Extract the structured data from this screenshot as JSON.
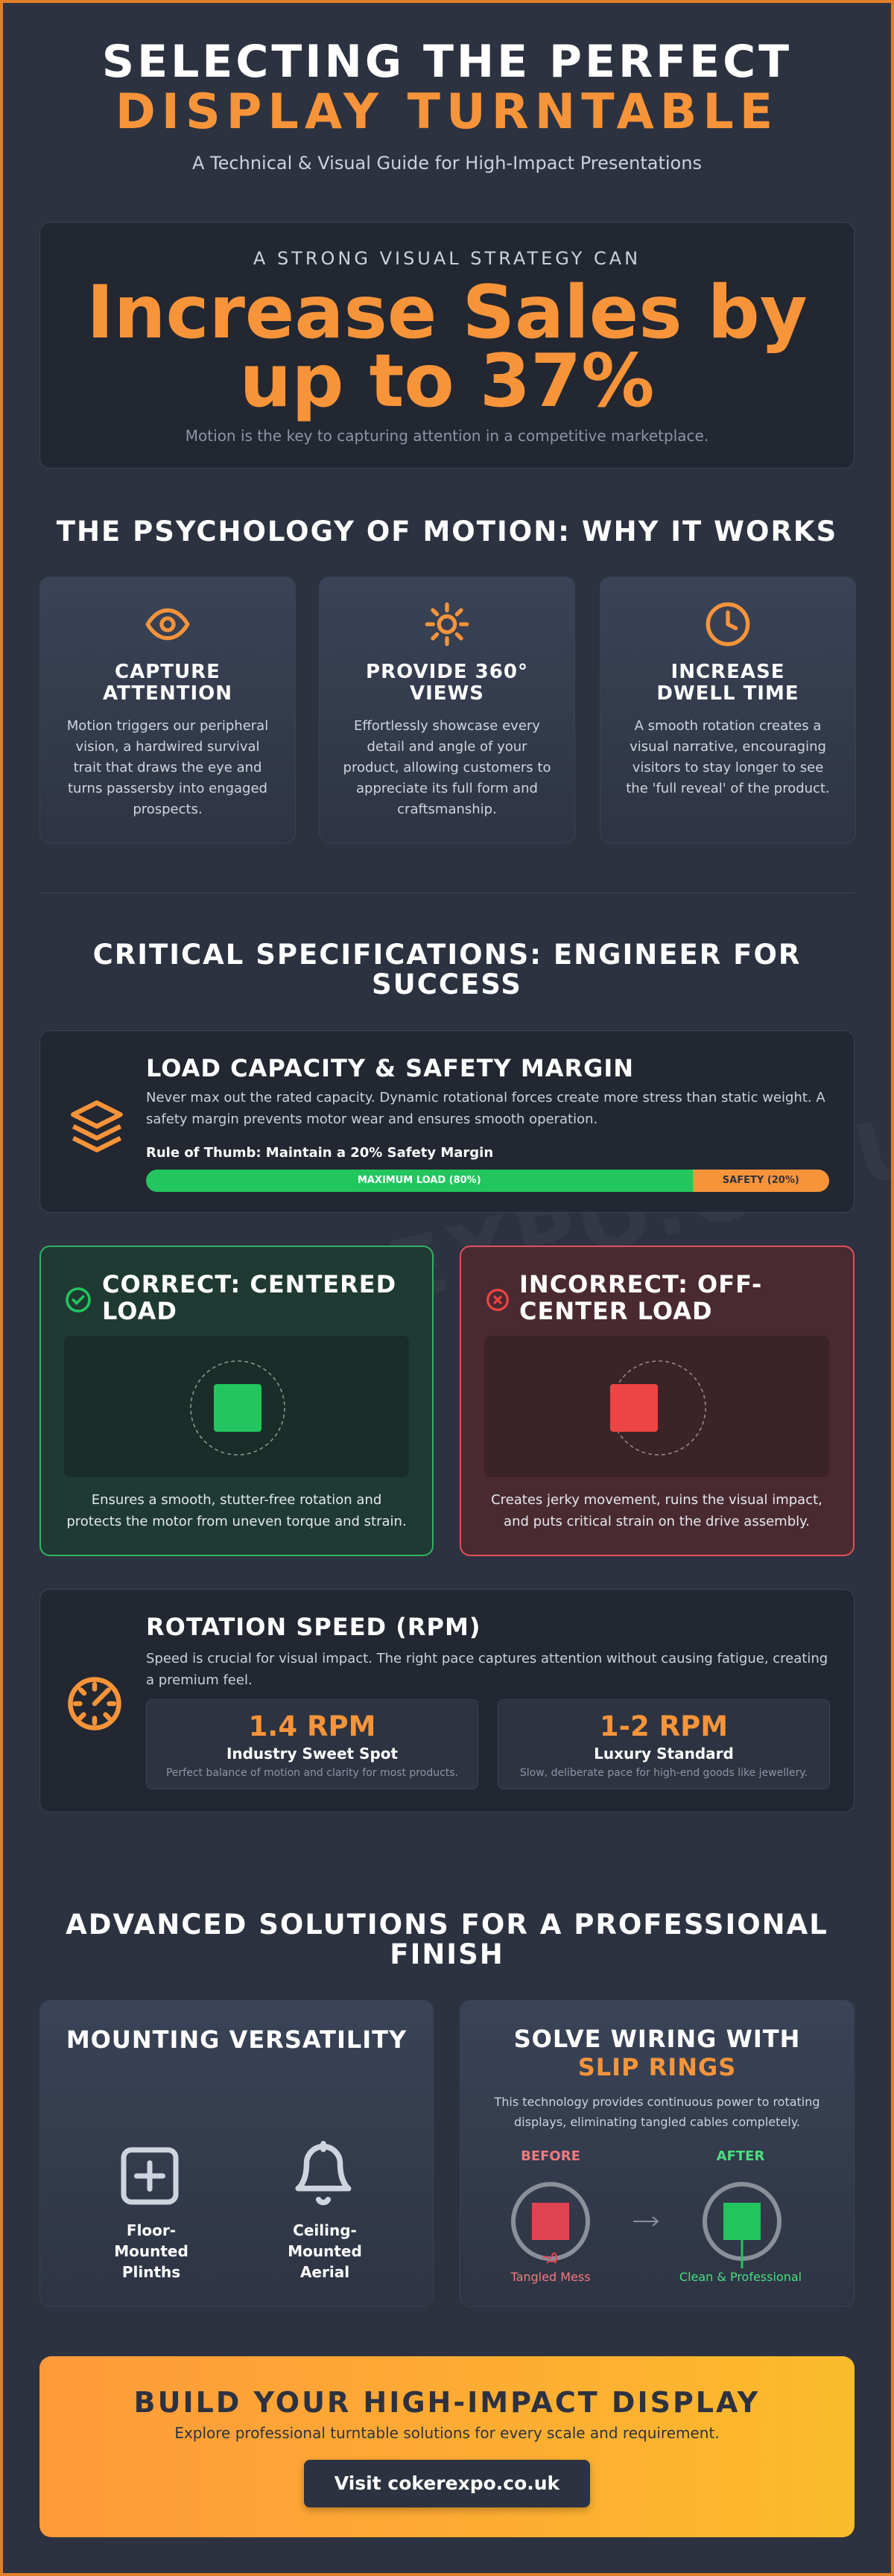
{
  "header": {
    "title_line1": "SELECTING THE PERFECT",
    "title_line2": "DISPLAY TURNTABLE",
    "subtitle": "A Technical & Visual Guide for High-Impact Presentations"
  },
  "watermark": "COKEREXPO.CO.UK",
  "hero": {
    "kicker": "A STRONG VISUAL STRATEGY CAN",
    "headline_line1": "Increase Sales by",
    "headline_line2": "up to 37%",
    "caption": "Motion is the key to capturing attention in a competitive marketplace."
  },
  "psychology": {
    "heading": "THE PSYCHOLOGY OF MOTION: WHY IT WORKS",
    "cards": [
      {
        "title": "CAPTURE ATTENTION",
        "text": "Motion triggers our peripheral vision, a hardwired survival trait that draws the eye and turns passersby into engaged prospects."
      },
      {
        "title": "PROVIDE 360° VIEWS",
        "text": "Effortlessly showcase every detail and angle of your product, allowing customers to appreciate its full form and craftsmanship."
      },
      {
        "title": "INCREASE DWELL TIME",
        "text": "A smooth rotation creates a visual narrative, encouraging visitors to stay longer to see the 'full reveal' of the product."
      }
    ]
  },
  "specs": {
    "heading": "CRITICAL SPECIFICATIONS: ENGINEER FOR SUCCESS",
    "load": {
      "title": "LOAD CAPACITY & SAFETY MARGIN",
      "text": "Never max out the rated capacity. Dynamic rotational forces create more stress than static weight. A safety margin prevents motor wear and ensures smooth operation.",
      "rule": "Rule of Thumb: Maintain a 20% Safety Margin",
      "segments": [
        {
          "label": "MAXIMUM LOAD (80%)",
          "value": 80
        },
        {
          "label": "SAFETY (20%)",
          "value": 20
        }
      ]
    },
    "correct": {
      "title": "CORRECT: CENTERED LOAD",
      "text": "Ensures a smooth, stutter-free rotation and protects the motor from uneven torque and strain."
    },
    "incorrect": {
      "title": "INCORRECT: OFF-CENTER LOAD",
      "text": "Creates jerky movement, ruins the visual impact, and puts critical strain on the drive assembly."
    },
    "rpm": {
      "title": "ROTATION SPEED (RPM)",
      "text": "Speed is crucial for visual impact. The right pace captures attention without causing fatigue, creating a premium feel.",
      "options": [
        {
          "value": "1.4 RPM",
          "label": "Industry Sweet Spot",
          "note": "Perfect balance of motion and clarity for most products."
        },
        {
          "value": "1-2 RPM",
          "label": "Luxury Standard",
          "note": "Slow, deliberate pace for high-end goods like jewellery."
        }
      ]
    }
  },
  "advanced": {
    "heading": "ADVANCED SOLUTIONS FOR A PROFESSIONAL FINISH",
    "mounting": {
      "title": "MOUNTING VERSATILITY",
      "options": [
        "Floor-Mounted Plinths",
        "Ceiling-Mounted Aerial"
      ]
    },
    "wiring": {
      "title_prefix": "SOLVE WIRING WITH",
      "title_highlight": "SLIP RINGS",
      "text": "This technology provides continuous power to rotating displays, eliminating tangled cables completely.",
      "before": "BEFORE",
      "before_caption": "Tangled Mess",
      "after": "AFTER",
      "after_caption": "Clean & Professional"
    }
  },
  "cta": {
    "title": "BUILD YOUR HIGH-IMPACT DISPLAY",
    "text": "Explore professional turntable solutions for every scale and requirement.",
    "button": "Visit cokerexpo.co.uk"
  }
}
